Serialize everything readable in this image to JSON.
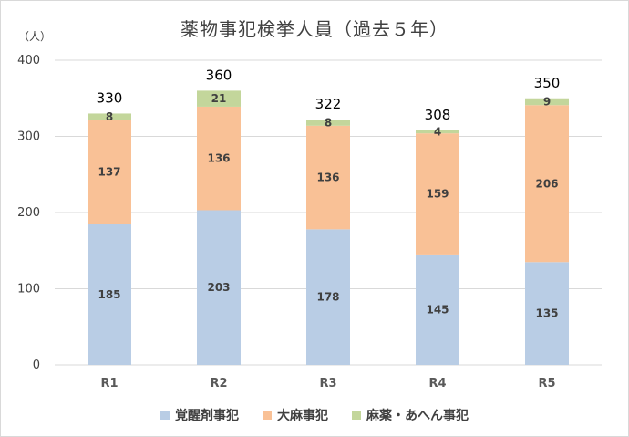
{
  "chart_data": {
    "type": "bar",
    "stacked": true,
    "title": "薬物事犯検挙人員（過去５年）",
    "y_unit": "（人）",
    "ylim": [
      0,
      400
    ],
    "yticks": [
      0,
      100,
      200,
      300,
      400
    ],
    "grid": true,
    "legend_position": "bottom",
    "categories": [
      "R1",
      "R2",
      "R3",
      "R4",
      "R5"
    ],
    "series": [
      {
        "name": "覚醒剤事犯",
        "color": "#b9cde5",
        "values": [
          185,
          203,
          178,
          145,
          135
        ]
      },
      {
        "name": "大麻事犯",
        "color": "#f9c196",
        "values": [
          137,
          136,
          136,
          159,
          206
        ]
      },
      {
        "name": "麻薬・あへん事犯",
        "color": "#c3d69b",
        "values": [
          8,
          21,
          8,
          4,
          9
        ]
      }
    ],
    "totals": [
      330,
      360,
      322,
      308,
      350
    ]
  }
}
